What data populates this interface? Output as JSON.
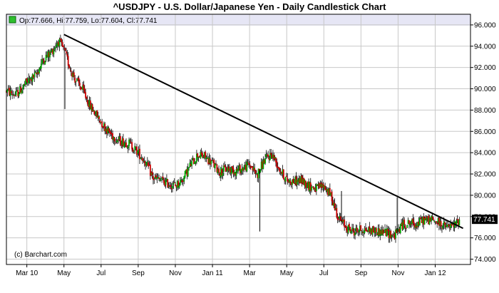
{
  "title": "^USDJPY - U.S. Dollar/Japanese Yen - Daily Candlestick Chart",
  "ohlc_label": "Op:77.666, Hi:77.759, Lo:77.604, Cl:77.741",
  "credit": "(c) Barchart.com",
  "last_price_label": "77.741",
  "colors": {
    "up": "#00aa00",
    "down": "#cc0000",
    "wick": "#000000",
    "grid": "#c8c8c8",
    "header_band": "#e6e6f5",
    "last_price_bg": "#000000"
  },
  "chart_data": {
    "type": "candlestick",
    "grid": true,
    "ylim": [
      73.5,
      97
    ],
    "y_ticks": [
      "96.000",
      "94.000",
      "92.000",
      "90.000",
      "88.000",
      "86.000",
      "84.000",
      "82.000",
      "80.000",
      "78.000",
      "76.000",
      "74.000"
    ],
    "x_ticks": [
      "Mar 10",
      "May",
      "Jul",
      "Sep",
      "Nov",
      "Jan 11",
      "Mar",
      "May",
      "Jul",
      "Sep",
      "Nov",
      "Jan 12"
    ],
    "x_tick_positions": [
      0,
      2,
      4,
      6,
      8,
      10,
      12,
      14,
      16,
      18,
      20,
      22
    ],
    "x_range": [
      -1.1,
      23.9
    ],
    "last": {
      "open": 77.666,
      "high": 77.759,
      "low": 77.604,
      "close": 77.741
    },
    "trendline": {
      "from": [
        2.0,
        95.1
      ],
      "to": [
        23.5,
        76.9
      ]
    },
    "price_path": [
      [
        -1.1,
        89.8
      ],
      [
        -0.6,
        89.4
      ],
      [
        0.0,
        90.6
      ],
      [
        0.5,
        91.3
      ],
      [
        0.9,
        92.8
      ],
      [
        1.3,
        93.4
      ],
      [
        1.7,
        94.5
      ],
      [
        2.0,
        93.6
      ],
      [
        2.3,
        92.1
      ],
      [
        2.6,
        90.9
      ],
      [
        3.0,
        89.9
      ],
      [
        3.4,
        88.4
      ],
      [
        3.8,
        87.4
      ],
      [
        4.2,
        86.4
      ],
      [
        4.6,
        85.6
      ],
      [
        5.0,
        85.1
      ],
      [
        5.5,
        84.9
      ],
      [
        6.0,
        84.0
      ],
      [
        6.4,
        83.1
      ],
      [
        6.8,
        81.6
      ],
      [
        7.2,
        81.4
      ],
      [
        7.6,
        81.1
      ],
      [
        8.0,
        80.9
      ],
      [
        8.4,
        81.5
      ],
      [
        8.8,
        82.8
      ],
      [
        9.2,
        83.8
      ],
      [
        9.6,
        83.6
      ],
      [
        10.0,
        83.0
      ],
      [
        10.4,
        82.2
      ],
      [
        10.8,
        82.5
      ],
      [
        11.2,
        82.3
      ],
      [
        11.6,
        82.5
      ],
      [
        12.0,
        82.9
      ],
      [
        12.4,
        81.9
      ],
      [
        12.8,
        83.3
      ],
      [
        13.2,
        83.9
      ],
      [
        13.6,
        82.5
      ],
      [
        14.0,
        81.4
      ],
      [
        14.4,
        81.3
      ],
      [
        14.8,
        81.4
      ],
      [
        15.2,
        80.9
      ],
      [
        15.6,
        80.6
      ],
      [
        16.0,
        80.9
      ],
      [
        16.4,
        79.9
      ],
      [
        16.8,
        77.8
      ],
      [
        17.2,
        77.0
      ],
      [
        17.6,
        76.6
      ],
      [
        18.0,
        76.8
      ],
      [
        18.5,
        76.7
      ],
      [
        19.0,
        76.6
      ],
      [
        19.4,
        76.5
      ],
      [
        19.8,
        76.2
      ],
      [
        20.2,
        77.2
      ],
      [
        20.6,
        77.4
      ],
      [
        21.0,
        77.3
      ],
      [
        21.4,
        77.7
      ],
      [
        21.8,
        77.7
      ],
      [
        22.2,
        77.4
      ],
      [
        22.6,
        77.0
      ],
      [
        23.0,
        77.1
      ],
      [
        23.3,
        77.74
      ]
    ],
    "spikes": [
      [
        2.05,
        88.1
      ],
      [
        12.55,
        76.6
      ],
      [
        16.95,
        80.4
      ],
      [
        19.95,
        79.8
      ]
    ]
  }
}
